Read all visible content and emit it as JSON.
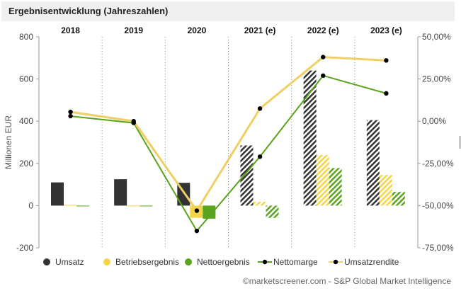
{
  "title": "Ergebnisentwicklung (Jahreszahlen)",
  "footer": "©marketscreener.com - S&P Global Market Intelligence",
  "colors": {
    "umsatz": "#333333",
    "betriebsergebnis": "#f5d547",
    "nettoergebnis": "#5aa51e",
    "nettomarge_line": "#58a31a",
    "umsatzrendite_line": "#efcf63",
    "marker": "#000000"
  },
  "chart_data": {
    "type": "bar",
    "categories": [
      "2018",
      "2019",
      "2020",
      "2021 (e)",
      "2022 (e)",
      "2023 (e)"
    ],
    "estimated": [
      false,
      false,
      false,
      true,
      true,
      true
    ],
    "ylabel": "Millionen EUR",
    "ylim": [
      -200,
      800
    ],
    "y_ticks": [
      "-200",
      "0",
      "200",
      "400",
      "600",
      "800"
    ],
    "y2lim": [
      -75,
      50
    ],
    "y2_ticks": [
      "-75,00%",
      "-50,00%",
      "-25,00%",
      "0,00%",
      "25,00%",
      "50,00%"
    ],
    "series": [
      {
        "name": "Umsatz",
        "kind": "bar",
        "values": [
          110,
          125,
          108,
          285,
          640,
          405
        ]
      },
      {
        "name": "Betriebsergebnis",
        "kind": "bar",
        "values": [
          3,
          0,
          -58,
          18,
          240,
          145
        ]
      },
      {
        "name": "Nettoergebnis",
        "kind": "bar",
        "values": [
          -3,
          0,
          -62,
          -58,
          178,
          65
        ]
      },
      {
        "name": "Nettomarge",
        "kind": "line",
        "axis": "right",
        "values": [
          3,
          -1,
          -65,
          -21,
          27,
          16.5
        ]
      },
      {
        "name": "Umsatzrendite",
        "kind": "line",
        "axis": "right",
        "values": [
          5.5,
          0,
          -53,
          7.5,
          38,
          36
        ]
      }
    ],
    "legend": [
      "Umsatz",
      "Betriebsergebnis",
      "Nettoergebnis",
      "Nettomarge",
      "Umsatzrendite"
    ],
    "legend_position": "bottom",
    "grid": "vertical dotted"
  }
}
